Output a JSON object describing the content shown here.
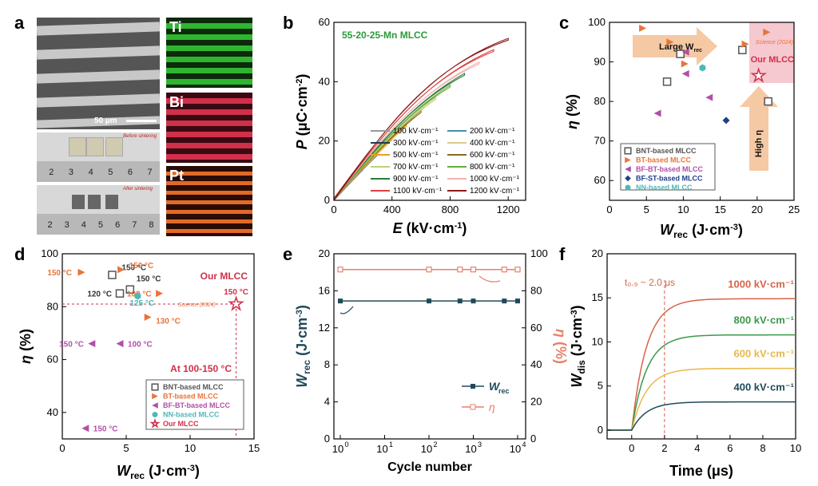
{
  "panel_labels": {
    "a": "a",
    "b": "b",
    "c": "c",
    "d": "d",
    "e": "e",
    "f": "f"
  },
  "panel_a": {
    "scale_bar": "50 µm",
    "maps": [
      "Ti",
      "Bi",
      "Pt"
    ],
    "before": "Before sintering",
    "after": "After sintering",
    "ruler1": [
      "2",
      "3",
      "4",
      "5",
      "6",
      "7"
    ],
    "ruler2": [
      "2",
      "3",
      "4",
      "5",
      "6",
      "7",
      "8"
    ],
    "colors": {
      "Ti": "#2fb52f",
      "Bi": "#d0304a",
      "Pt": "#e06a2a"
    }
  },
  "chart_data": [
    {
      "panel": "b",
      "type": "line",
      "title": "55-20-25-Mn MLCC",
      "xlabel": "E (kV·cm⁻¹)",
      "ylabel": "P (μC·cm⁻²)",
      "xlim": [
        0,
        1320
      ],
      "ylim": [
        0,
        60
      ],
      "xticks": [
        "0",
        "400",
        "800",
        "1200"
      ],
      "yticks": [
        "0",
        "20",
        "40",
        "60"
      ],
      "series": [
        {
          "name": "100 kV·cm⁻¹",
          "emax": 100,
          "pmax": 5.2,
          "color": "#999999"
        },
        {
          "name": "200 kV·cm⁻¹",
          "emax": 200,
          "pmax": 10.3,
          "color": "#4a8fb0"
        },
        {
          "name": "300 kV·cm⁻¹",
          "emax": 300,
          "pmax": 15.3,
          "color": "#1e3c55"
        },
        {
          "name": "400 kV·cm⁻¹",
          "emax": 400,
          "pmax": 20.2,
          "color": "#d9c98a"
        },
        {
          "name": "500 kV·cm⁻¹",
          "emax": 500,
          "pmax": 25.0,
          "color": "#e8a020"
        },
        {
          "name": "600 kV·cm⁻¹",
          "emax": 600,
          "pmax": 29.6,
          "color": "#8a6a20"
        },
        {
          "name": "700 kV·cm⁻¹",
          "emax": 700,
          "pmax": 34.0,
          "color": "#bcd27a"
        },
        {
          "name": "800 kV·cm⁻¹",
          "emax": 800,
          "pmax": 38.2,
          "color": "#6aaa3a"
        },
        {
          "name": "900 kV·cm⁻¹",
          "emax": 900,
          "pmax": 42.2,
          "color": "#2e7a3a"
        },
        {
          "name": "1000 kV·cm⁻¹",
          "emax": 1000,
          "pmax": 46.0,
          "color": "#f2b0b0"
        },
        {
          "name": "1100 kV·cm⁻¹",
          "emax": 1100,
          "pmax": 50.2,
          "color": "#e04040"
        },
        {
          "name": "1200 kV·cm⁻¹",
          "emax": 1200,
          "pmax": 54.0,
          "color": "#8a1a1a"
        }
      ]
    },
    {
      "panel": "c",
      "type": "scatter",
      "xlabel": "W_rec (J·cm⁻³)",
      "ylabel": "η (%)",
      "xlim": [
        0,
        25
      ],
      "ylim": [
        55,
        100
      ],
      "xticks": [
        "0",
        "5",
        "10",
        "15",
        "20",
        "25"
      ],
      "yticks": [
        "60",
        "70",
        "80",
        "90",
        "100"
      ],
      "annotations": {
        "large": "Large W",
        "large_sub": "rec",
        "high": "High η",
        "our": "Our MLCC",
        "science": "Science (2024)"
      },
      "legend": [
        "BNT-based MLCC",
        "BT-based MLCC",
        "BF-BT-based MLCC",
        "BF-ST-based MLCC",
        "NN-based MLCC"
      ],
      "groups": [
        {
          "name": "BNT",
          "marker": "square",
          "color": "#555555",
          "points": [
            [
              7.8,
              85
            ],
            [
              9.6,
              92
            ],
            [
              18.0,
              93
            ],
            [
              21.5,
              80
            ]
          ]
        },
        {
          "name": "BT",
          "marker": "tri-right",
          "color": "#e8743a",
          "points": [
            [
              4.5,
              98.5
            ],
            [
              8.2,
              95
            ],
            [
              10.2,
              89.5
            ],
            [
              18.4,
              94.5
            ],
            [
              21.3,
              97.5
            ]
          ]
        },
        {
          "name": "BF-BT",
          "marker": "tri-left",
          "color": "#b24fa8",
          "points": [
            [
              10.3,
              92.5
            ],
            [
              10.3,
              87
            ],
            [
              6.5,
              77
            ],
            [
              13.5,
              81
            ]
          ]
        },
        {
          "name": "BF-ST",
          "marker": "diamond",
          "color": "#1f3f8a",
          "points": [
            [
              15.8,
              75.2
            ]
          ]
        },
        {
          "name": "NN",
          "marker": "hexagon",
          "color": "#4fb7b8",
          "points": [
            [
              12.6,
              88.5
            ]
          ]
        },
        {
          "name": "Our",
          "marker": "star",
          "color": "#d0304a",
          "points": [
            [
              20.2,
              86.5
            ]
          ]
        }
      ]
    },
    {
      "panel": "d",
      "type": "scatter",
      "xlabel": "W_rec (J·cm⁻³)",
      "ylabel": "η (%)",
      "xlim": [
        0,
        15
      ],
      "ylim": [
        30,
        100
      ],
      "xticks": [
        "0",
        "5",
        "10",
        "15"
      ],
      "yticks": [
        "40",
        "60",
        "80",
        "100"
      ],
      "annotations": {
        "our": "Our MLCC",
        "temp_range": "At 100-150 °C",
        "science": "Science (2024)"
      },
      "legend": [
        "BNT-based MLCC",
        "BT-based MLCC",
        "BF-BT-based MLCC",
        "NN-based MLCC",
        "Our MLCC"
      ],
      "points": [
        {
          "g": "BNT",
          "x": 3.9,
          "y": 92,
          "label": "150 °C"
        },
        {
          "g": "BNT",
          "x": 4.5,
          "y": 85,
          "label": "120 °C"
        },
        {
          "g": "BNT",
          "x": 5.3,
          "y": 86.5,
          "label": "150 °C"
        },
        {
          "g": "BT",
          "x": 1.5,
          "y": 93,
          "label": "150 °C"
        },
        {
          "g": "BT",
          "x": 4.6,
          "y": 94,
          "label": "150 °C"
        },
        {
          "g": "BT",
          "x": 7.6,
          "y": 85,
          "label": "100 °C"
        },
        {
          "g": "BT",
          "x": 6.7,
          "y": 76,
          "label": "130 °C"
        },
        {
          "g": "NN",
          "x": 5.9,
          "y": 84,
          "label": "125 °C"
        },
        {
          "g": "BF-BT",
          "x": 2.3,
          "y": 66,
          "label": "150 °C"
        },
        {
          "g": "BF-BT",
          "x": 4.5,
          "y": 66,
          "label": "100 °C"
        },
        {
          "g": "BF-BT",
          "x": 1.8,
          "y": 34,
          "label": "150 °C"
        },
        {
          "g": "Our",
          "x": 13.6,
          "y": 81,
          "label": "150 °C"
        }
      ]
    },
    {
      "panel": "e",
      "type": "line",
      "xlabel": "Cycle number",
      "ylabel_left": "W_rec (J·cm⁻³)",
      "ylabel_right": "η (%)",
      "xlim_log": [
        0,
        4
      ],
      "ylim_left": [
        0,
        20
      ],
      "ylim_right": [
        0,
        100
      ],
      "xticks": [
        "10",
        "10",
        "10",
        "10",
        "10"
      ],
      "xtick_exp": [
        "0",
        "1",
        "2",
        "3",
        "4"
      ],
      "yticks_left": [
        "0",
        "4",
        "8",
        "12",
        "16",
        "20"
      ],
      "yticks_right": [
        "0",
        "20",
        "40",
        "60",
        "80",
        "100"
      ],
      "cycles": [
        1,
        100,
        500,
        1000,
        5000,
        10000
      ],
      "w_rec": [
        14.9,
        14.9,
        14.9,
        14.9,
        14.9,
        14.9
      ],
      "eta": [
        91.5,
        91.5,
        91.5,
        91.5,
        91.5,
        91.5
      ],
      "legend": {
        "w": "W",
        "w_sub": "rec",
        "eta": "η"
      },
      "colors": {
        "w": "#1f4a5a",
        "eta": "#e8816a"
      }
    },
    {
      "panel": "f",
      "type": "line",
      "xlabel": "Time (μs)",
      "ylabel": "W_dis (J·cm⁻³)",
      "xlim": [
        -1.5,
        10
      ],
      "ylim": [
        -1,
        20
      ],
      "xticks": [
        "0",
        "2",
        "4",
        "6",
        "8",
        "10"
      ],
      "yticks": [
        "0",
        "5",
        "10",
        "15",
        "20"
      ],
      "annotation": "t₀.₉ ~ 2.0 μs",
      "series": [
        {
          "name": "1000 kV·cm⁻¹",
          "plateau": 14.9,
          "color": "#d8634a"
        },
        {
          "name": "800 kV·cm⁻¹",
          "plateau": 10.8,
          "color": "#3a9a4a"
        },
        {
          "name": "600 kV·cm⁻¹",
          "plateau": 7.0,
          "color": "#e8b84a"
        },
        {
          "name": "400 kV·cm⁻¹",
          "plateau": 3.2,
          "color": "#1f4a5a"
        }
      ]
    }
  ]
}
